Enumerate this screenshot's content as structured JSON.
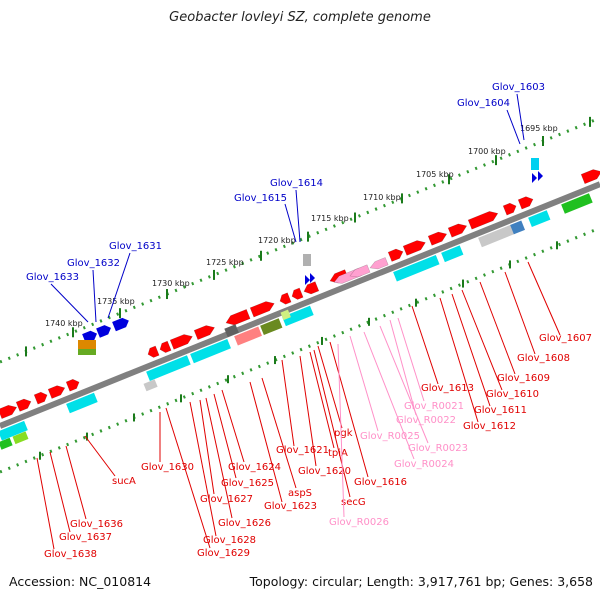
{
  "title": "Geobacter lovleyi SZ, complete genome",
  "footer": {
    "accession": "Accession: NC_010814",
    "summary": "Topology: circular; Length: 3,917,761 bp; Genes: 3,658"
  },
  "colors": {
    "forward_gene": "#ff0000",
    "reverse_gene": "#ff0000",
    "rna_gene": "#ffa0d0",
    "blue_gene": "#0000dd",
    "cds_cyan": "#00e0e8",
    "backbone": "#808080",
    "tick": "#339933",
    "label_red": "#e00000",
    "label_blue": "#0000c8",
    "label_pink": "#ff90c8"
  },
  "ruler_labels": [
    {
      "kbp": 1740,
      "text": "1740 kbp"
    },
    {
      "kbp": 1735,
      "text": "1735 kbp"
    },
    {
      "kbp": 1730,
      "text": "1730 kbp"
    },
    {
      "kbp": 1725,
      "text": "1725 kbp"
    },
    {
      "kbp": 1720,
      "text": "1720 kbp"
    },
    {
      "kbp": 1715,
      "text": "1715 kbp"
    },
    {
      "kbp": 1710,
      "text": "1710 kbp"
    },
    {
      "kbp": 1705,
      "text": "1705 kbp"
    },
    {
      "kbp": 1700,
      "text": "1700 kbp"
    },
    {
      "kbp": 1695,
      "text": "1695 kbp"
    }
  ],
  "blue_labels": [
    "Glov_1603",
    "Glov_1604",
    "Glov_1614",
    "Glov_1615",
    "Glov_1631",
    "Glov_1632",
    "Glov_1633"
  ],
  "red_labels": [
    "Glov_1607",
    "Glov_1608",
    "Glov_1609",
    "Glov_1610",
    "Glov_1611",
    "Glov_1612",
    "Glov_1613",
    "pgk",
    "tpiA",
    "Glov_1620",
    "Glov_1621",
    "Glov_1616",
    "secG",
    "aspS",
    "Glov_1623",
    "Glov_1624",
    "Glov_1625",
    "Glov_1626",
    "Glov_1627",
    "Glov_1628",
    "Glov_1629",
    "Glov_1630",
    "sucA",
    "Glov_1636",
    "Glov_1637",
    "Glov_1638"
  ],
  "pink_labels": [
    "Glov_R0021",
    "Glov_R0022",
    "Glov_R0023",
    "Glov_R0024",
    "Glov_R0025",
    "Glov_R0026"
  ]
}
